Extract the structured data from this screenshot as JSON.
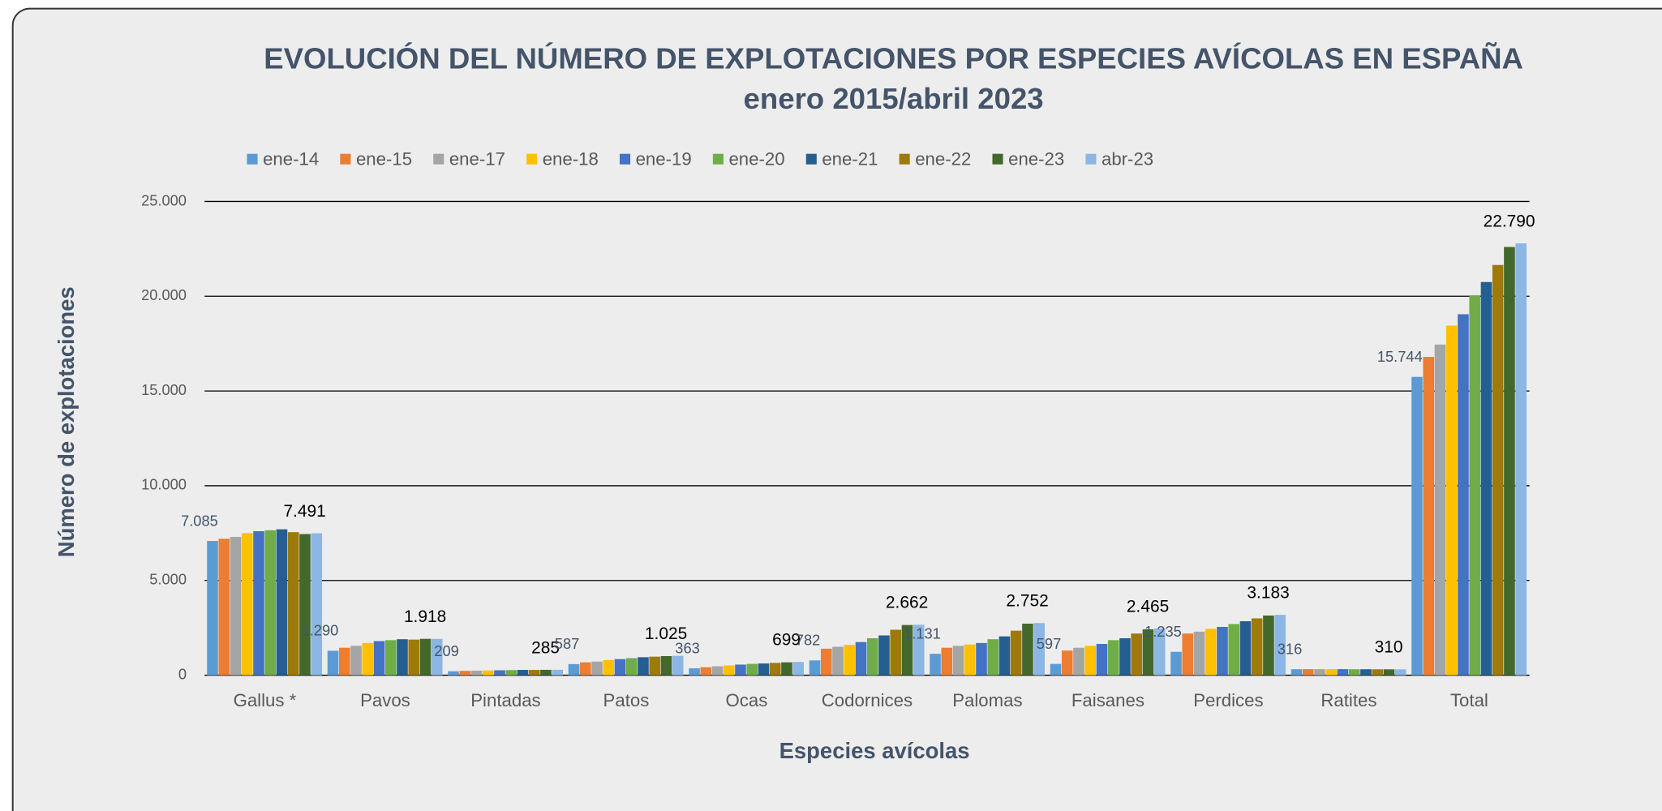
{
  "chart_data": {
    "type": "bar",
    "title": "EVOLUCIÓN DEL NÚMERO DE EXPLOTACIONES POR ESPECIES AVÍCOLAS EN ESPAÑA",
    "subtitle": "enero 2015/abril 2023",
    "x_label": "Especies avícolas",
    "y_label": "Número de explotaciones",
    "categories": [
      "Gallus *",
      "Pavos",
      "Pintadas",
      "Patos",
      "Ocas",
      "Codornices",
      "Palomas",
      "Faisanes",
      "Perdices",
      "Ratites",
      "Total"
    ],
    "series": [
      {
        "name": "ene-14",
        "color": "#5b9bd5",
        "values": [
          7085,
          1290,
          209,
          587,
          363,
          782,
          1131,
          597,
          1235,
          316,
          15744
        ],
        "value_labels": [
          "7.085",
          "1.290",
          "209",
          "587",
          "363",
          "782",
          "1.131",
          "597",
          "1.235",
          "316",
          "15.744"
        ]
      },
      {
        "name": "ene-15",
        "color": "#ed7d31",
        "values": [
          7200,
          1450,
          230,
          680,
          420,
          1400,
          1450,
          1300,
          2200,
          320,
          16800
        ]
      },
      {
        "name": "ene-17",
        "color": "#a5a5a5",
        "values": [
          7300,
          1550,
          240,
          720,
          470,
          1500,
          1550,
          1450,
          2300,
          320,
          17450
        ]
      },
      {
        "name": "ene-18",
        "color": "#ffc000",
        "values": [
          7500,
          1700,
          250,
          800,
          520,
          1600,
          1620,
          1550,
          2450,
          320,
          18450
        ]
      },
      {
        "name": "ene-19",
        "color": "#4472c4",
        "values": [
          7600,
          1800,
          260,
          850,
          560,
          1750,
          1700,
          1650,
          2550,
          320,
          19050
        ]
      },
      {
        "name": "ene-20",
        "color": "#70ad47",
        "values": [
          7650,
          1850,
          270,
          900,
          600,
          1950,
          1900,
          1850,
          2700,
          315,
          20050
        ]
      },
      {
        "name": "ene-21",
        "color": "#255e91",
        "values": [
          7700,
          1900,
          280,
          950,
          620,
          2100,
          2050,
          1950,
          2850,
          315,
          20750
        ]
      },
      {
        "name": "ene-22",
        "color": "#9e7a0a",
        "values": [
          7550,
          1880,
          280,
          980,
          650,
          2400,
          2350,
          2200,
          3000,
          312,
          21650
        ]
      },
      {
        "name": "ene-23",
        "color": "#43682b",
        "values": [
          7450,
          1920,
          285,
          1010,
          680,
          2650,
          2720,
          2420,
          3150,
          310,
          22600
        ]
      },
      {
        "name": "abr-23",
        "color": "#8cb6e3",
        "values": [
          7491,
          1918,
          285,
          1025,
          699,
          2662,
          2752,
          2465,
          3183,
          310,
          22790
        ],
        "value_labels": [
          "7.491",
          "1.918",
          "285",
          "1.025",
          "699",
          "2.662",
          "2.752",
          "2.465",
          "3.183",
          "310",
          "22.790"
        ]
      }
    ],
    "ylim": [
      0,
      25000
    ],
    "yticks": [
      0,
      {
        "value": 5000,
        "label": "5.000"
      },
      {
        "value": 10000,
        "label": "10.000"
      },
      {
        "value": 15000,
        "label": "15.000"
      },
      {
        "value": 20000,
        "label": "20.000"
      },
      {
        "value": 25000,
        "label": "25.000"
      }
    ],
    "grid": true,
    "legend": "top"
  }
}
